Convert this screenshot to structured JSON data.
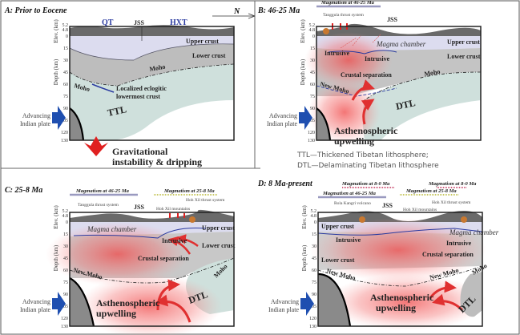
{
  "north_label": "N",
  "axis": {
    "elev_label": "Elev. (km)",
    "depth_label": "Depth (km)",
    "elev_ticks": [
      "5.2",
      "4.8"
    ],
    "depth_ticks": [
      0,
      15,
      30,
      45,
      60,
      75,
      90,
      105,
      120,
      130
    ]
  },
  "indian_plate": "Advancing Indian plate",
  "indian_plate_lines": [
    "Advancing",
    "Indian plate"
  ],
  "colors": {
    "upper_crust": "#dcdcef",
    "lower_crust": "#bdbdbd",
    "lithosphere": "#cfe0dc",
    "asthenosphere": "#f05a5a",
    "indian_plate_arrow": "#1f4fb0",
    "dripping_arrow": "#e02020"
  },
  "panels": {
    "a": {
      "title": "A: Prior to Eocene",
      "qt": "QT",
      "jss": "JSS",
      "hxt": "HXT",
      "upper_crust": "Upper crust",
      "lower_crust": "Lower crust",
      "moho": "Moho",
      "moho2": "Moho",
      "eclogite_1": "Localized eclogitic",
      "eclogite_2": "lowermost crust",
      "ttl": "TTL",
      "dripping_1": "Gravitational",
      "dripping_2": "instability & dripping"
    },
    "b": {
      "title": "B: 46-25 Ma",
      "magmatism": "Magmatism at 46-25 Ma",
      "thrust": "Tanggula thrust system",
      "jss": "JSS",
      "magma_chamber": "Magma chamber",
      "upper_crust": "Upper crust",
      "lower_crust": "Lower crust",
      "intrusive_1": "Intrusive",
      "intrusive_2": "Intrusive",
      "crustal_sep": "Crustal separation",
      "moho": "Moho",
      "new_moho": "New Moho",
      "dtl": "DTL",
      "asth_1": "Asthenospheric",
      "asth_2": "upwelling"
    },
    "c": {
      "title": "C: 25-8 Ma",
      "magmatism_1": "Magmatism at 46-25 Ma",
      "magmatism_2": "Magmatism at 25-8 Ma",
      "thrust_1": "Tanggula thrust system",
      "thrust_2": "Hoh Xil thrust system",
      "mountains": "Hoh Xil mountains",
      "jss": "JSS",
      "magma_chamber": "Magma chamber",
      "upper_crust": "Upper crust",
      "lower_crust": "Lower crust",
      "intrusive": "Intrusive",
      "crustal_sep": "Crustal separation",
      "moho": "Moho",
      "new_moho": "New Moho",
      "dtl": "DTL",
      "asth_1": "Asthenospheric",
      "asth_2": "upwelling"
    },
    "d": {
      "title": "D: 8 Ma-present",
      "magmatism_1": "Magmatism at 8-0 Ma",
      "magmatism_2": "Magmatism at 8-0 Ma",
      "magmatism_3": "Magmatism at 46-25 Ma",
      "magmatism_4": "Magmatism at 25-8 Ma",
      "volcano": "Rola Kangri volcano",
      "thrust": "Hoh Xil thrust system",
      "mountains": "Hoh Xil mountains",
      "jss": "JSS",
      "magma_chamber": "Magma chamber",
      "upper_crust": "Upper crust",
      "lower_crust": "Lower crust",
      "intrusive_1": "Intrusive",
      "intrusive_2": "Intrusive",
      "crustal_sep": "Crustal separation",
      "moho": "Moho",
      "new_moho_1": "New Moho",
      "new_moho_2": "New Moho",
      "dtl": "DTL",
      "asth_1": "Asthenospheric",
      "asth_2": "upwelling"
    }
  },
  "legend": {
    "ttl": "TTL—Thickened Tibetan lithosphere;",
    "dtl": "DTL—Delaminating Tibetan lithosphere"
  }
}
